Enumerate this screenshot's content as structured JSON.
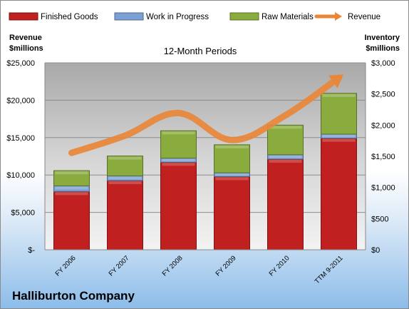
{
  "chart_data": {
    "type": "bar",
    "stacked": true,
    "title": "12-Month Periods",
    "company": "Halliburton Company",
    "left_axis_label": [
      "Revenue",
      "$millions"
    ],
    "right_axis_label": [
      "Inventory",
      "$millions"
    ],
    "categories": [
      "FY 2006",
      "FY 2007",
      "FY 2008",
      "FY 2009",
      "FY 2010",
      "TTM 9-2011"
    ],
    "left_ticks": [
      "$-",
      "$5,000",
      "$10,000",
      "$15,000",
      "$20,000",
      "$25,000"
    ],
    "right_ticks": [
      "$0",
      "$500",
      "$1,000",
      "$1,500",
      "$2,000",
      "$2,500",
      "$3,000"
    ],
    "ylim_left": [
      0,
      25000
    ],
    "ylim_right": [
      0,
      3000
    ],
    "grid": true,
    "legend_position": "top",
    "series": [
      {
        "name": "Finished Goods",
        "axis": "right",
        "color": "#c0201f",
        "values": [
          935,
          1110,
          1405,
          1175,
          1455,
          1790
        ]
      },
      {
        "name": "Work in Progress",
        "axis": "right",
        "color": "#7aa0d4",
        "values": [
          90,
          75,
          65,
          60,
          70,
          65
        ]
      },
      {
        "name": "Raw Materials",
        "axis": "right",
        "color": "#8aac3f",
        "values": [
          245,
          320,
          440,
          450,
          475,
          655
        ]
      },
      {
        "name": "Revenue",
        "axis": "left",
        "type": "line",
        "color": "#e8873a",
        "values": [
          12955,
          15264,
          18279,
          14675,
          17973,
          23000
        ]
      }
    ]
  }
}
